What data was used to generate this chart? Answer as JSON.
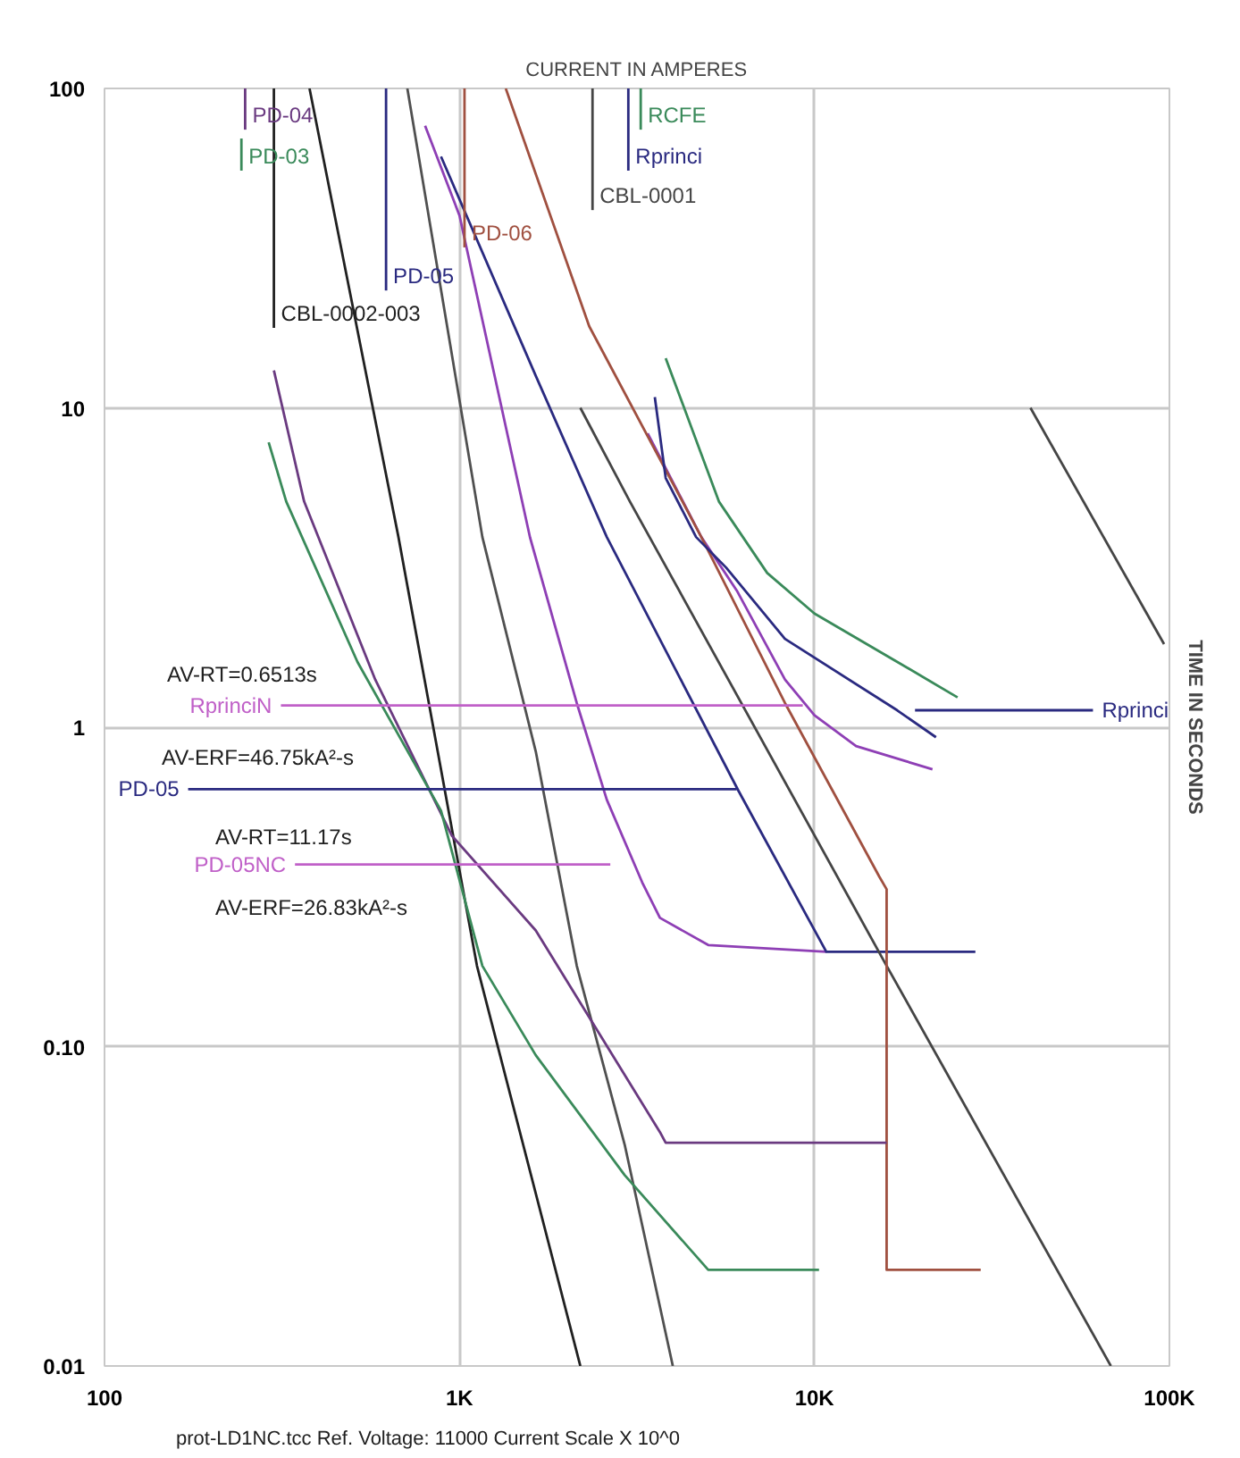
{
  "chart_data": {
    "type": "line",
    "xlabel": "CURRENT IN AMPERES",
    "ylabel": "TIME IN SECONDS",
    "log": "xy",
    "grid": true,
    "xlim": [
      100,
      100000
    ],
    "ylim": [
      0.01,
      100
    ],
    "xticks": [
      100,
      {
        "value": 1000,
        "label": "1K"
      },
      {
        "value": 10000,
        "label": "10K"
      },
      {
        "value": 100000,
        "label": "100K"
      }
    ],
    "yticks": [
      100,
      10,
      1,
      {
        "value": 0.1,
        "label": "0.10"
      },
      0.01
    ],
    "annotations": [
      "AV-RT=0.6513s",
      "AV-ERF=46.75kA²-s",
      "AV-RT=11.17s",
      "AV-ERF=26.83kA²-s",
      "prot-LD1NC.tcc   Ref. Voltage: 11000   Current Scale X 10^0"
    ],
    "series": [
      {
        "color": "#8e3fb5",
        "x": [
          800,
          1000,
          1580,
          2140,
          2600,
          3270,
          3670,
          5020,
          10800
        ],
        "values": [
          76.4,
          40,
          3.93,
          1.19,
          0.593,
          0.327,
          0.253,
          0.208,
          0.198
        ]
      },
      {
        "color": "#8e3fb5",
        "x": [
          3390,
          4800,
          6040,
          8260,
          10000,
          13100,
          21500
        ],
        "values": [
          8.32,
          3.94,
          2.68,
          1.41,
          1.09,
          0.873,
          0.738
        ]
      },
      {
        "color": "#2a2a80",
        "x": [
          887,
          1640,
          2600,
          6110,
          10800,
          28400
        ],
        "values": [
          61.2,
          12.6,
          3.94,
          0.632,
          0.198,
          0.198
        ]
      },
      {
        "color": "#454545",
        "x": [
          2190,
          3020,
          15970,
          68400
        ],
        "values": [
          10,
          5.09,
          0.179,
          0.01
        ]
      },
      {
        "color": "#a05040",
        "x": [
          1350,
          2320,
          4800,
          8260,
          15240,
          15970,
          15970,
          29400
        ],
        "values": [
          100,
          18,
          3.94,
          1.19,
          0.34,
          0.311,
          0.02,
          0.02
        ]
      },
      {
        "color": "#3a8a5a",
        "x": [
          3810,
          5380,
          7360,
          10000,
          16500,
          25300
        ],
        "values": [
          14.3,
          5.09,
          3.04,
          2.27,
          1.64,
          1.24
        ]
      },
      {
        "color": "#2a2a80",
        "x": [
          3550,
          3810,
          4640,
          5640,
          8260,
          17100,
          22000
        ],
        "values": [
          10.8,
          6.03,
          3.94,
          3.16,
          1.89,
          1.13,
          0.93
        ]
      },
      {
        "color": "#202020",
        "x": [
          378,
          673,
          1120,
          2190
        ],
        "values": [
          100,
          3.94,
          0.179,
          0.01
        ]
      },
      {
        "color": "#505050",
        "x": [
          713,
          1160,
          1640,
          2140,
          2920,
          3990
        ],
        "values": [
          100,
          3.94,
          0.84,
          0.179,
          0.0493,
          0.01
        ]
      },
      {
        "color": "#6a3a80",
        "x": [
          300,
          365,
          579,
          951,
          1640,
          3670,
          3810,
          15970
        ],
        "values": [
          13.1,
          5.09,
          1.41,
          0.458,
          0.231,
          0.054,
          0.05,
          0.05
        ]
      },
      {
        "color": "#3a8a5a",
        "x": [
          290,
          325,
          516,
          887,
          1160,
          1640,
          2920,
          5020,
          10300
        ],
        "values": [
          7.8,
          5.09,
          1.6,
          0.548,
          0.179,
          0.094,
          0.0396,
          0.02,
          0.02
        ]
      },
      {
        "color": "#454545",
        "x": [
          40600,
          96600
        ],
        "values": [
          10,
          1.82
        ]
      },
      {
        "name": "PD-04",
        "color": "#6a3a80",
        "x": [
          249,
          249
        ],
        "values": [
          74.3,
          100
        ]
      },
      {
        "name": "PD-03",
        "color": "#3a8a5a",
        "x": [
          243,
          243
        ],
        "values": [
          55.3,
          69.7
        ]
      },
      {
        "name": "CBL-0002-003",
        "color": "#202020",
        "x": [
          300,
          300
        ],
        "values": [
          17.8,
          100
        ]
      },
      {
        "name": "PD-05",
        "color": "#2a2a80",
        "x": [
          621,
          621
        ],
        "values": [
          23.3,
          100
        ]
      },
      {
        "name": "PD-06",
        "color": "#a05040",
        "x": [
          1033,
          1033
        ],
        "values": [
          31.8,
          100
        ]
      },
      {
        "name": "CBL-0001",
        "color": "#454545",
        "x": [
          2370,
          2370
        ],
        "values": [
          41.6,
          100
        ]
      },
      {
        "name": "Rprinci",
        "color": "#2a2a80",
        "x": [
          2990,
          2990
        ],
        "values": [
          55.3,
          100
        ]
      },
      {
        "name": "RCFE",
        "color": "#3a8a5a",
        "x": [
          3240,
          3240
        ],
        "values": [
          74.3,
          100
        ]
      },
      {
        "name": "RprinciN",
        "color": "#c060c8",
        "x": [
          314,
          9270
        ],
        "values": [
          1.17,
          1.17
        ]
      },
      {
        "name": "PD-05",
        "color": "#2a2a80",
        "x": [
          172,
          6040
        ],
        "values": [
          0.64,
          0.64
        ]
      },
      {
        "name": "PD-05NC",
        "color": "#c060c8",
        "x": [
          344,
          2660
        ],
        "values": [
          0.372,
          0.372
        ]
      },
      {
        "name": "Rprinci",
        "color": "#2a2a80",
        "x": [
          60900,
          19200
        ],
        "values": [
          1.13,
          1.13
        ]
      }
    ]
  }
}
